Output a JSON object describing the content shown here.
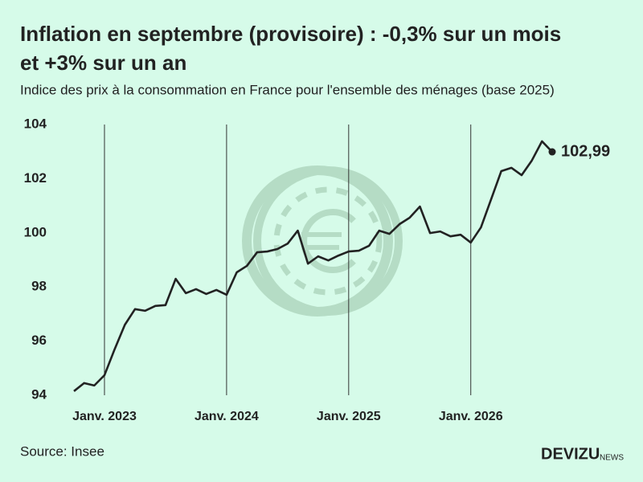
{
  "chart_data": {
    "type": "line",
    "title": "Inflation en septembre (provisoire) : -0,3% sur un mois et +3% sur un an",
    "subtitle": "Indice des prix à la consommation en France pour l'ensemble des ménages (base 2025)",
    "source": "Source: Insee",
    "brand": "DEVIZU",
    "brand_suffix": "NEWS",
    "x": [
      "2022-10",
      "2022-11",
      "2022-12",
      "2023-01",
      "2023-02",
      "2023-03",
      "2023-04",
      "2023-05",
      "2023-06",
      "2023-07",
      "2023-08",
      "2023-09",
      "2023-10",
      "2023-11",
      "2023-12",
      "2024-01",
      "2024-02",
      "2024-03",
      "2024-04",
      "2024-05",
      "2024-06",
      "2024-07",
      "2024-08",
      "2024-09",
      "2024-10",
      "2024-11",
      "2024-12",
      "2025-01",
      "2025-02",
      "2025-03",
      "2025-04",
      "2025-05",
      "2025-06",
      "2025-07",
      "2025-08",
      "2025-09",
      "2025-10",
      "2025-11",
      "2025-12",
      "2026-01",
      "2026-02",
      "2026-03",
      "2026-04",
      "2026-05",
      "2026-06",
      "2026-07",
      "2026-08",
      "2026-09"
    ],
    "series": [
      {
        "color": "#222222",
        "values": [
          94.15,
          94.45,
          94.36,
          94.74,
          95.7,
          96.6,
          97.18,
          97.12,
          97.3,
          97.33,
          98.3,
          97.77,
          97.92,
          97.74,
          97.89,
          97.71,
          98.54,
          98.78,
          99.28,
          99.31,
          99.4,
          99.6,
          100.08,
          98.86,
          99.13,
          98.98,
          99.16,
          99.31,
          99.34,
          99.52,
          100.08,
          99.96,
          100.32,
          100.56,
          100.97,
          99.99,
          100.05,
          99.87,
          99.93,
          99.64,
          100.2,
          101.24,
          102.28,
          102.4,
          102.13,
          102.67,
          103.38,
          102.99
        ],
        "value_labels": [
          null,
          null,
          null,
          null,
          null,
          null,
          null,
          null,
          null,
          null,
          null,
          null,
          null,
          null,
          null,
          null,
          null,
          null,
          null,
          null,
          null,
          null,
          null,
          null,
          null,
          null,
          null,
          null,
          null,
          null,
          null,
          null,
          null,
          null,
          null,
          null,
          null,
          null,
          null,
          null,
          null,
          null,
          null,
          null,
          null,
          null,
          null,
          "102,99"
        ]
      }
    ],
    "xlim": [
      "2022-10",
      "2026-09"
    ],
    "xticks": [
      {
        "value": "2023-01",
        "label": "Janv. 2023"
      },
      {
        "value": "2024-01",
        "label": "Janv. 2024"
      },
      {
        "value": "2025-01",
        "label": "Janv. 2025"
      },
      {
        "value": "2026-01",
        "label": "Janv. 2026"
      }
    ],
    "ylim": [
      94,
      104
    ],
    "yticks": [
      94,
      96,
      98,
      100,
      102,
      104
    ],
    "grid": true
  }
}
